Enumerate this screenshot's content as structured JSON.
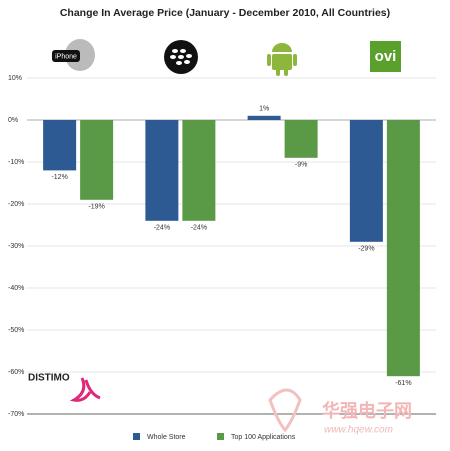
{
  "chart_data": {
    "type": "bar",
    "title": "Change In Average Price (January - December 2010, All Countries)",
    "categories": [
      "iPhone",
      null,
      null,
      "ovi"
    ],
    "series": [
      {
        "name": "Whole Store",
        "color": "#2e5a94",
        "values": [
          -12,
          -24,
          1,
          -29
        ],
        "value_labels": [
          "-12%",
          "-24%",
          "1%",
          "-29%"
        ]
      },
      {
        "name": "Top 100 Applications",
        "color": "#5a9a46",
        "values": [
          -19,
          -24,
          -9,
          -61
        ],
        "value_labels": [
          "-19%",
          "-24%",
          "-9%",
          "-61%"
        ]
      }
    ],
    "ylim": [
      -70,
      10
    ],
    "yticks": [
      {
        "value": 10,
        "label": "10%"
      },
      {
        "value": 0,
        "label": "0%"
      },
      {
        "value": -10,
        "label": "-10%"
      },
      {
        "value": -20,
        "label": "-20%"
      },
      {
        "value": -30,
        "label": "-30%"
      },
      {
        "value": -40,
        "label": "-40%"
      },
      {
        "value": -50,
        "label": "-50%"
      },
      {
        "value": -60,
        "label": "-60%"
      },
      {
        "value": -70,
        "label": "-70%"
      }
    ],
    "grid": true,
    "legend": "bottom",
    "annotations": [
      "DISTIMO",
      "华强电子网",
      "www.hqew.com"
    ]
  }
}
